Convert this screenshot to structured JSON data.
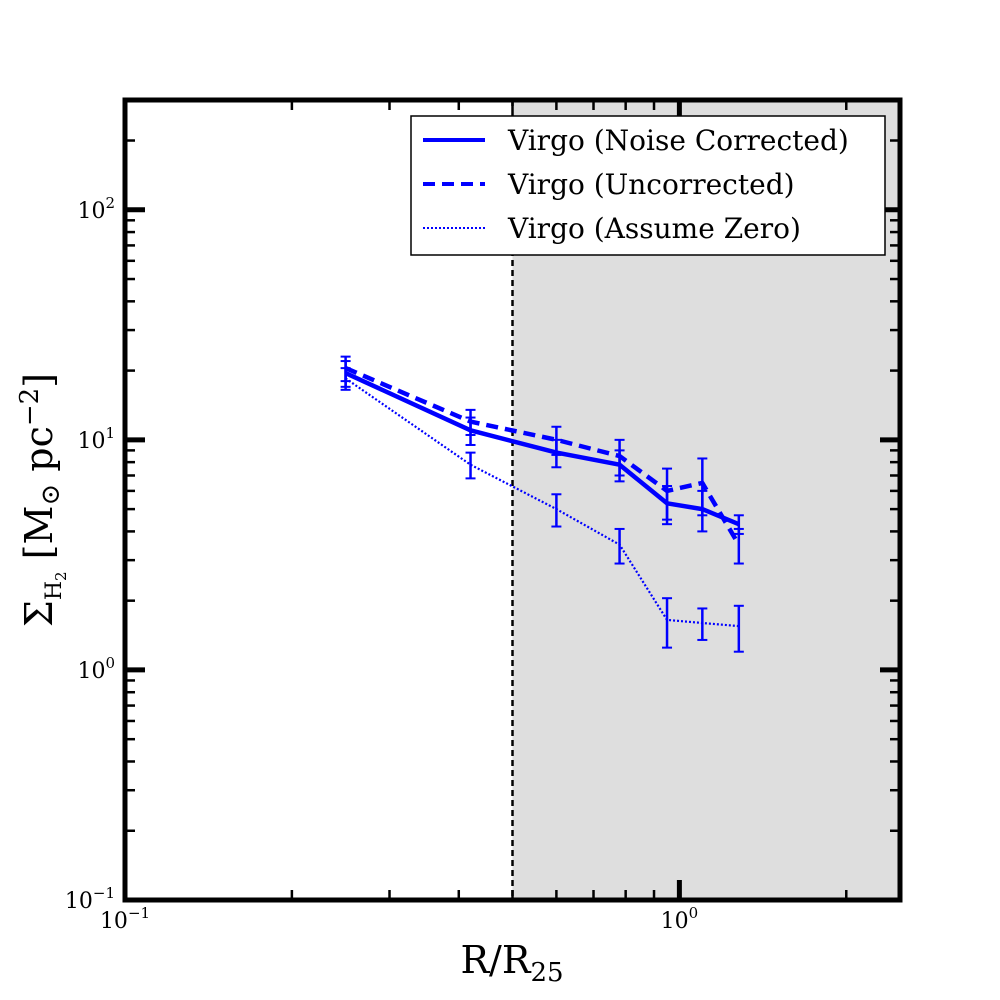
{
  "chart_data": {
    "type": "line",
    "xscale": "log",
    "yscale": "log",
    "xlim": [
      0.1,
      2.5
    ],
    "ylim": [
      0.1,
      300
    ],
    "xlabel": {
      "base": "R/R",
      "sub": "25"
    },
    "ylabel": {
      "sigma": "Σ",
      "sub_main": "H",
      "sub_sub": "2",
      "unit_open": "[M",
      "sun": "⊙",
      "unit_mid": "pc",
      "exp": "−2",
      "unit_close": "]"
    },
    "x_ticks": [
      {
        "base": "10",
        "exp": "−1",
        "value": 0.1
      },
      {
        "base": "10",
        "exp": "0",
        "value": 1
      }
    ],
    "y_ticks": [
      {
        "base": "10",
        "exp": "−1",
        "value": 0.1
      },
      {
        "base": "10",
        "exp": "0",
        "value": 1
      },
      {
        "base": "10",
        "exp": "1",
        "value": 10
      },
      {
        "base": "10",
        "exp": "2",
        "value": 100
      }
    ],
    "shaded_region": {
      "x_from": 0.5,
      "x_to": 2.5,
      "color": "#dedede"
    },
    "reference_line": {
      "x": 0.5,
      "style": "dashed",
      "color": "#000000"
    },
    "legend_position": "top-right",
    "series": [
      {
        "name": "Virgo (Noise Corrected)",
        "style": "solid",
        "color": "#0000ff",
        "x": [
          0.25,
          0.42,
          0.6,
          0.78,
          0.95,
          1.1,
          1.28
        ],
        "y": [
          19.5,
          11.0,
          8.8,
          7.8,
          5.3,
          5.0,
          4.3
        ],
        "err": [
          2.5,
          1.5,
          1.2,
          1.2,
          1.0,
          1.0,
          0.4
        ]
      },
      {
        "name": "Virgo (Uncorrected)",
        "style": "dashed",
        "color": "#0000ff",
        "x": [
          0.25,
          0.42,
          0.6,
          0.78,
          0.95,
          1.1,
          1.28
        ],
        "y": [
          20.5,
          12.0,
          10.0,
          8.5,
          6.0,
          6.5,
          3.5
        ],
        "err": [
          2.5,
          1.5,
          1.4,
          1.5,
          1.5,
          1.8,
          0.6
        ]
      },
      {
        "name": "Virgo (Assume Zero)",
        "style": "dotted",
        "color": "#0000ff",
        "x": [
          0.25,
          0.42,
          0.6,
          0.78,
          0.95,
          1.1,
          1.28
        ],
        "y": [
          18.5,
          7.8,
          5.0,
          3.5,
          1.65,
          1.6,
          1.55
        ],
        "err": [
          2.0,
          1.0,
          0.8,
          0.6,
          0.4,
          0.25,
          0.35
        ]
      }
    ]
  }
}
